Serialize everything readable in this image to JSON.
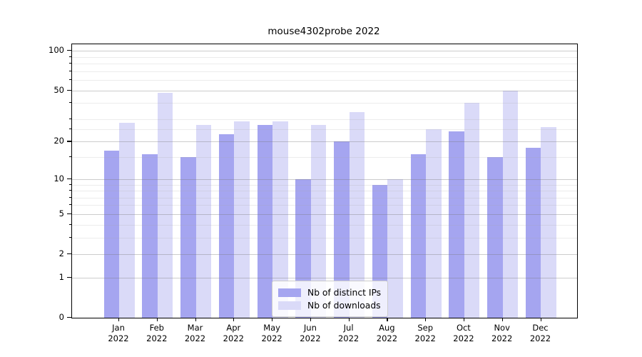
{
  "header": {
    "title": "mouse4302probe 2022"
  },
  "legend": {
    "items": [
      {
        "label": "Nb of distinct IPs",
        "color": "#a5a5f0"
      },
      {
        "label": "Nb of downloads",
        "color": "#dadaf8"
      }
    ]
  },
  "chart_data": {
    "type": "bar",
    "title": "mouse4302probe 2022",
    "categories": [
      "Jan",
      "Feb",
      "Mar",
      "Apr",
      "May",
      "Jun",
      "Jul",
      "Aug",
      "Sep",
      "Oct",
      "Nov",
      "Dec"
    ],
    "category_year": "2022",
    "series": [
      {
        "name": "Nb of distinct IPs",
        "color": "#a5a5f0",
        "values": [
          17,
          16,
          15,
          23,
          27,
          10,
          20,
          9,
          16,
          24,
          15,
          18
        ]
      },
      {
        "name": "Nb of downloads",
        "color": "#dadaf8",
        "values": [
          28,
          48,
          27,
          29,
          29,
          27,
          34,
          10,
          25,
          40,
          50,
          26
        ]
      }
    ],
    "xlabel": "",
    "ylabel": "",
    "y_scale": "log10(1+value)",
    "y_major_ticks": [
      0,
      1,
      2,
      5,
      10,
      20,
      50,
      100
    ],
    "y_minor_ticks": [
      3,
      4,
      6,
      7,
      8,
      9,
      15,
      25,
      30,
      40,
      60,
      70,
      80,
      90
    ],
    "ylim": [
      0,
      113
    ],
    "grid": "on",
    "grid_over_bars": true,
    "legend_position": "inside-bottom-center"
  }
}
